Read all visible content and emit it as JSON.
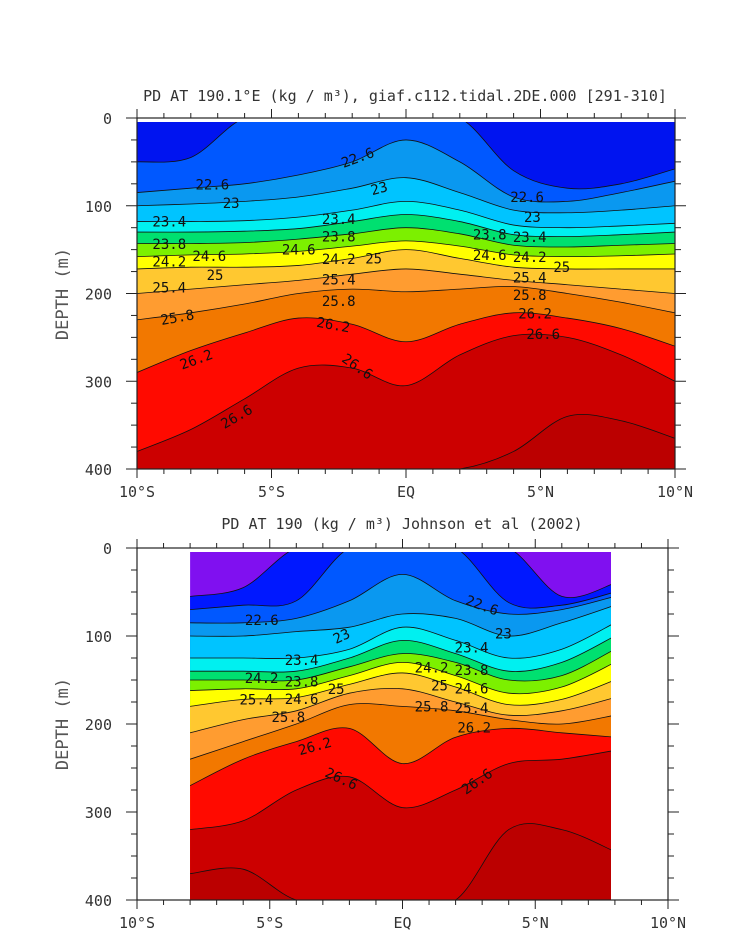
{
  "chart_data": [
    {
      "type": "contour",
      "title": "PD AT 190.1°E (kg / m³), giaf.c112.tidal.2DE.000 [291-310]",
      "xlabel": "",
      "ylabel": "DEPTH (m)",
      "xlim": [
        -10,
        10
      ],
      "ylim": [
        0,
        400
      ],
      "data_xlim": [
        -10,
        10
      ],
      "x_ticks": [
        {
          "v": -10,
          "label": "10°S"
        },
        {
          "v": -5,
          "label": "5°S"
        },
        {
          "v": 0,
          "label": "EQ"
        },
        {
          "v": 5,
          "label": "5°N"
        },
        {
          "v": 10,
          "label": "10°N"
        }
      ],
      "y_ticks": [
        {
          "v": 0,
          "label": "0"
        },
        {
          "v": 100,
          "label": "100"
        },
        {
          "v": 200,
          "label": "200"
        },
        {
          "v": 300,
          "label": "300"
        },
        {
          "v": 400,
          "label": "400"
        }
      ],
      "lats": [
        -10,
        -8,
        -6,
        -4,
        -2,
        0,
        2,
        4,
        6,
        8,
        10
      ],
      "top_color": "#0014f0",
      "levels": [
        {
          "level": 22.2,
          "below_color": "#0058ff",
          "depths": [
            50,
            45,
            0,
            0,
            0,
            0,
            0,
            60,
            80,
            75,
            58
          ]
        },
        {
          "level": 22.6,
          "below_color": "#0a98f0",
          "depths": [
            85,
            80,
            75,
            65,
            50,
            25,
            50,
            90,
            95,
            85,
            72
          ]
        },
        {
          "level": 23.0,
          "below_color": "#00c4ff",
          "depths": [
            100,
            98,
            95,
            90,
            80,
            68,
            85,
            105,
            108,
            105,
            100
          ]
        },
        {
          "level": 23.4,
          "below_color": "#00f0f0",
          "depths": [
            118,
            118,
            117,
            113,
            105,
            95,
            105,
            122,
            125,
            123,
            120
          ]
        },
        {
          "level": 23.8,
          "below_color": "#00e070",
          "depths": [
            130,
            130,
            129,
            126,
            118,
            110,
            118,
            133,
            135,
            133,
            130
          ]
        },
        {
          "level": 24.2,
          "below_color": "#7cf000",
          "depths": [
            143,
            143,
            142,
            138,
            132,
            125,
            132,
            145,
            147,
            145,
            143
          ]
        },
        {
          "level": 24.6,
          "below_color": "#ffff00",
          "depths": [
            158,
            156,
            155,
            152,
            146,
            140,
            146,
            156,
            158,
            157,
            155
          ]
        },
        {
          "level": 25.0,
          "below_color": "#ffc830",
          "depths": [
            172,
            170,
            170,
            168,
            160,
            150,
            160,
            170,
            172,
            172,
            172
          ]
        },
        {
          "level": 25.4,
          "below_color": "#ff9c30",
          "depths": [
            200,
            195,
            190,
            185,
            178,
            172,
            178,
            185,
            190,
            195,
            200
          ]
        },
        {
          "level": 25.8,
          "below_color": "#f27800",
          "depths": [
            230,
            222,
            212,
            200,
            195,
            198,
            195,
            192,
            200,
            210,
            222
          ]
        },
        {
          "level": 26.2,
          "below_color": "#ff0a00",
          "depths": [
            290,
            265,
            245,
            228,
            235,
            255,
            235,
            222,
            228,
            240,
            260
          ]
        },
        {
          "level": 26.6,
          "below_color": "#cc0000",
          "depths": [
            380,
            355,
            320,
            285,
            285,
            305,
            270,
            248,
            250,
            270,
            300
          ]
        },
        {
          "level": 27.0,
          "below_color": "#bb0000",
          "depths": [
            400,
            400,
            400,
            400,
            400,
            400,
            400,
            380,
            340,
            345,
            365
          ]
        }
      ],
      "labels": [
        {
          "text": "22.6",
          "lat": -1.8,
          "depth": 45,
          "rot": -20
        },
        {
          "text": "22.6",
          "lat": -7.2,
          "depth": 76,
          "rot": 0
        },
        {
          "text": "22.6",
          "lat": 4.5,
          "depth": 90,
          "rot": 0
        },
        {
          "text": "23",
          "lat": -6.5,
          "depth": 97,
          "rot": 0
        },
        {
          "text": "23",
          "lat": -1.0,
          "depth": 80,
          "rot": -15
        },
        {
          "text": "23",
          "lat": 4.7,
          "depth": 106,
          "rot": 0
        },
        {
          "text": "23.4",
          "lat": -8.8,
          "depth": 118,
          "rot": 0
        },
        {
          "text": "23.8",
          "lat": -8.8,
          "depth": 130,
          "rot": 0
        },
        {
          "text": "24.2",
          "lat": -8.8,
          "depth": 143,
          "rot": 0
        },
        {
          "text": "24.6",
          "lat": -8.8,
          "depth": 157,
          "rot": 0
        },
        {
          "text": "25",
          "lat": -7.1,
          "depth": 172,
          "rot": 0
        },
        {
          "text": "25.4",
          "lat": -8.8,
          "depth": 193,
          "rot": 0
        },
        {
          "text": "25.8",
          "lat": -8.5,
          "depth": 227,
          "rot": -10
        },
        {
          "text": "26.2",
          "lat": -7.8,
          "depth": 275,
          "rot": -20
        },
        {
          "text": "26.6",
          "lat": -6.3,
          "depth": 340,
          "rot": -30
        },
        {
          "text": "23.4",
          "lat": -2.5,
          "depth": 115,
          "rot": 0
        },
        {
          "text": "23.8",
          "lat": -2.5,
          "depth": 128,
          "rot": 0
        },
        {
          "text": "24.2",
          "lat": -2.5,
          "depth": 140,
          "rot": 0
        },
        {
          "text": "24.6",
          "lat": -2.5,
          "depth": 150,
          "rot": 0
        },
        {
          "text": "25",
          "lat": -1.5,
          "depth": 160,
          "rot": 0
        },
        {
          "text": "25.4",
          "lat": -2.5,
          "depth": 177,
          "rot": 0
        },
        {
          "text": "25.8",
          "lat": -2.5,
          "depth": 195,
          "rot": 0
        },
        {
          "text": "26.2",
          "lat": -2.7,
          "depth": 215,
          "rot": 10
        },
        {
          "text": "26.6",
          "lat": -1.8,
          "depth": 283,
          "rot": 35
        },
        {
          "text": "23.4",
          "lat": 4.6,
          "depth": 122,
          "rot": 0
        },
        {
          "text": "23.8",
          "lat": 4.6,
          "depth": 133,
          "rot": 0
        },
        {
          "text": "24.2",
          "lat": 4.6,
          "depth": 145,
          "rot": 0
        },
        {
          "text": "24.6",
          "lat": 4.6,
          "depth": 156,
          "rot": 0
        },
        {
          "text": "25",
          "lat": 4.9,
          "depth": 170,
          "rot": 0
        },
        {
          "text": "25.4",
          "lat": 4.6,
          "depth": 182,
          "rot": 0
        },
        {
          "text": "25.8",
          "lat": 4.6,
          "depth": 195,
          "rot": 0
        },
        {
          "text": "26.2",
          "lat": 4.8,
          "depth": 216,
          "rot": 0
        },
        {
          "text": "26.6",
          "lat": 5.1,
          "depth": 246,
          "rot": 0
        }
      ]
    },
    {
      "type": "contour",
      "title": "PD AT 190 (kg / m³) Johnson et al (2002)",
      "xlabel": "",
      "ylabel": "DEPTH (m)",
      "xlim": [
        -10,
        10
      ],
      "ylim": [
        0,
        400
      ],
      "data_xlim": [
        -7.8,
        8
      ],
      "x_ticks": [
        {
          "v": -10,
          "label": "10°S"
        },
        {
          "v": -5,
          "label": "5°S"
        },
        {
          "v": 0,
          "label": "EQ"
        },
        {
          "v": 5,
          "label": "5°N"
        },
        {
          "v": 10,
          "label": "10°N"
        }
      ],
      "y_ticks": [
        {
          "v": 0,
          "label": "0"
        },
        {
          "v": 100,
          "label": "100"
        },
        {
          "v": 200,
          "label": "200"
        },
        {
          "v": 300,
          "label": "300"
        },
        {
          "v": 400,
          "label": "400"
        }
      ],
      "lats": [
        -8,
        -6,
        -4,
        -2,
        0,
        2,
        4,
        6,
        8
      ],
      "top_color": "#8010f0",
      "levels": [
        {
          "level": 21.8,
          "below_color": "#0018ff",
          "depths": [
            55,
            45,
            0,
            0,
            0,
            0,
            0,
            55,
            40
          ]
        },
        {
          "level": 22.2,
          "below_color": "#0058ff",
          "depths": [
            70,
            65,
            60,
            0,
            0,
            0,
            62,
            65,
            50
          ]
        },
        {
          "level": 22.6,
          "below_color": "#0a98f0",
          "depths": [
            85,
            85,
            80,
            60,
            30,
            60,
            75,
            70,
            55
          ]
        },
        {
          "level": 23.0,
          "below_color": "#00c4ff",
          "depths": [
            100,
            100,
            95,
            90,
            75,
            80,
            100,
            85,
            65
          ]
        },
        {
          "level": 23.4,
          "below_color": "#00f0f0",
          "depths": [
            125,
            125,
            125,
            115,
            90,
            105,
            125,
            115,
            85
          ]
        },
        {
          "level": 23.8,
          "below_color": "#00e070",
          "depths": [
            140,
            140,
            140,
            125,
            105,
            120,
            140,
            130,
            100
          ]
        },
        {
          "level": 24.2,
          "below_color": "#7cf000",
          "depths": [
            150,
            150,
            150,
            135,
            120,
            130,
            150,
            145,
            115
          ]
        },
        {
          "level": 24.6,
          "below_color": "#ffff00",
          "depths": [
            162,
            160,
            160,
            145,
            130,
            145,
            165,
            158,
            130
          ]
        },
        {
          "level": 25.0,
          "below_color": "#ffc830",
          "depths": [
            180,
            172,
            170,
            155,
            142,
            158,
            178,
            172,
            150
          ]
        },
        {
          "level": 25.4,
          "below_color": "#ff9c30",
          "depths": [
            210,
            195,
            185,
            165,
            160,
            175,
            190,
            185,
            170
          ]
        },
        {
          "level": 25.8,
          "below_color": "#f27800",
          "depths": [
            240,
            220,
            200,
            178,
            180,
            185,
            195,
            200,
            190
          ]
        },
        {
          "level": 26.2,
          "below_color": "#ff0a00",
          "depths": [
            270,
            240,
            220,
            205,
            245,
            215,
            205,
            210,
            215
          ]
        },
        {
          "level": 26.6,
          "below_color": "#cc0000",
          "depths": [
            320,
            310,
            275,
            260,
            295,
            275,
            245,
            240,
            230
          ]
        },
        {
          "level": 27.0,
          "below_color": "#bb0000",
          "depths": [
            370,
            365,
            400,
            400,
            400,
            400,
            320,
            320,
            345
          ]
        }
      ],
      "labels": [
        {
          "text": "22.6",
          "lat": -5.3,
          "depth": 82,
          "rot": 0
        },
        {
          "text": "22.6",
          "lat": 3.0,
          "depth": 65,
          "rot": 20
        },
        {
          "text": "23",
          "lat": -2.3,
          "depth": 100,
          "rot": -25
        },
        {
          "text": "23",
          "lat": 3.8,
          "depth": 97,
          "rot": 0
        },
        {
          "text": "23.4",
          "lat": -3.8,
          "depth": 127,
          "rot": 0
        },
        {
          "text": "23.8",
          "lat": -3.8,
          "depth": 138,
          "rot": 0
        },
        {
          "text": "24.2",
          "lat": -3.8,
          "depth": 148,
          "rot": 0
        },
        {
          "text": "24.6",
          "lat": -3.8,
          "depth": 158,
          "rot": 0
        },
        {
          "text": "25",
          "lat": -2.5,
          "depth": 160,
          "rot": 0
        },
        {
          "text": "25.4",
          "lat": -4.3,
          "depth": 172,
          "rot": 0
        },
        {
          "text": "25.8",
          "lat": -4.3,
          "depth": 185,
          "rot": 0
        },
        {
          "text": "26.2",
          "lat": -3.3,
          "depth": 225,
          "rot": -15
        },
        {
          "text": "26.6",
          "lat": -2.3,
          "depth": 262,
          "rot": 25
        },
        {
          "text": "23.4",
          "lat": 2.6,
          "depth": 113,
          "rot": 0
        },
        {
          "text": "23.8",
          "lat": 2.6,
          "depth": 125,
          "rot": 0
        },
        {
          "text": "24.2",
          "lat": 2.6,
          "depth": 136,
          "rot": 0
        },
        {
          "text": "24.6",
          "lat": 2.6,
          "depth": 146,
          "rot": 0
        },
        {
          "text": "25",
          "lat": 2.6,
          "depth": 156,
          "rot": 0
        },
        {
          "text": "25.4",
          "lat": 2.6,
          "depth": 168,
          "rot": 0
        },
        {
          "text": "25.8",
          "lat": 2.6,
          "depth": 180,
          "rot": 0
        },
        {
          "text": "26.2",
          "lat": 2.7,
          "depth": 197,
          "rot": 0
        },
        {
          "text": "26.6",
          "lat": 2.8,
          "depth": 265,
          "rot": -35
        }
      ]
    }
  ]
}
